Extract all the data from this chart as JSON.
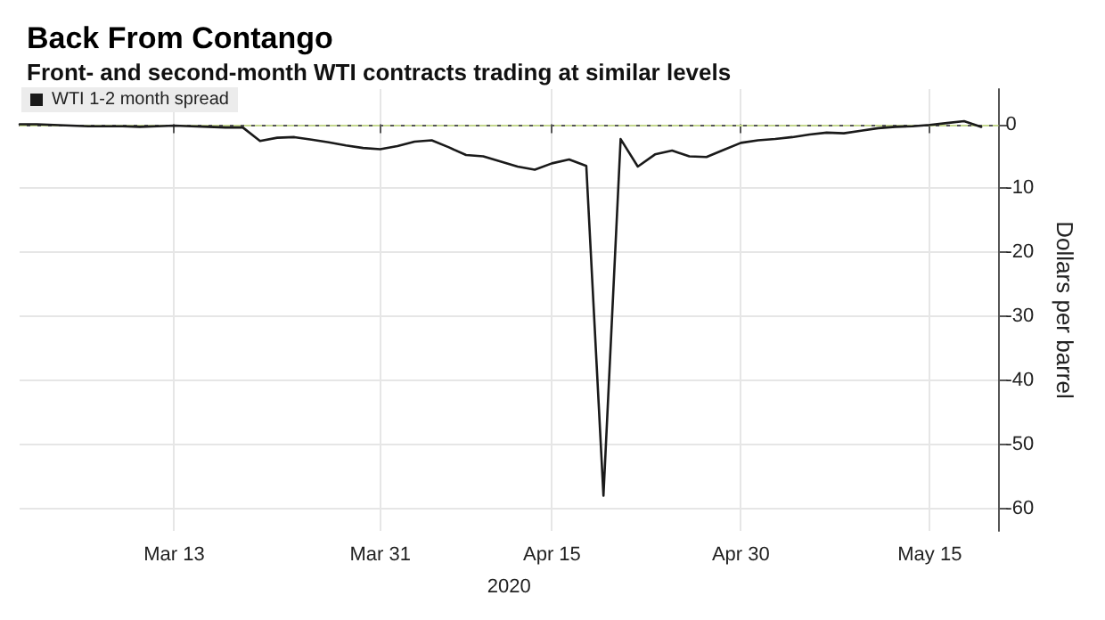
{
  "chart_data": {
    "type": "line",
    "title": "Back From Contango",
    "subtitle": "Front- and second-month WTI contracts trading at similar levels",
    "xlabel": "2020",
    "ylabel": "Dollars per barrel",
    "categories": [
      null,
      null,
      null,
      null,
      null,
      null,
      null,
      null,
      null,
      "Mar 13",
      null,
      null,
      null,
      null,
      null,
      null,
      null,
      null,
      null,
      null,
      null,
      "Mar 31",
      null,
      null,
      null,
      null,
      null,
      null,
      null,
      null,
      null,
      "Apr 15",
      null,
      null,
      null,
      null,
      null,
      null,
      null,
      null,
      null,
      null,
      "Apr 30",
      null,
      null,
      null,
      null,
      null,
      null,
      null,
      null,
      null,
      null,
      "May 15",
      null,
      null,
      null,
      null
    ],
    "series": [
      {
        "name": "WTI 1-2 month spread",
        "color": "#1a1a1a",
        "values": [
          0,
          0,
          -0.1,
          -0.2,
          -0.3,
          -0.3,
          -0.3,
          -0.4,
          -0.3,
          -0.2,
          -0.3,
          -0.4,
          -0.5,
          -0.5,
          -2.6,
          -2.1,
          -2.0,
          -2.4,
          -2.8,
          -3.3,
          -3.7,
          -3.9,
          -3.4,
          -2.7,
          -2.5,
          -3.6,
          -4.8,
          -5.0,
          -5.8,
          -6.6,
          -7.1,
          -6.1,
          -5.5,
          -6.5,
          -58.0,
          -2.3,
          -6.6,
          -4.7,
          -4.1,
          -5.0,
          -5.1,
          -4.0,
          -2.9,
          -2.5,
          -2.3,
          -2.0,
          -1.6,
          -1.3,
          -1.4,
          -1.0,
          -0.6,
          -0.4,
          -0.3,
          -0.1,
          0.2,
          0.5,
          -0.4,
          null
        ]
      }
    ],
    "ylim": [
      -63.5,
      5.5
    ],
    "yticks": [
      0,
      -10,
      -20,
      -30,
      -40,
      -50,
      -60
    ],
    "ref_lines": [
      {
        "axis": "y",
        "value": 0,
        "color": "#c5d88f",
        "line_style": "dashed"
      }
    ],
    "grid": true,
    "legend": "top left",
    "marker": "none",
    "line_style": "solid"
  }
}
